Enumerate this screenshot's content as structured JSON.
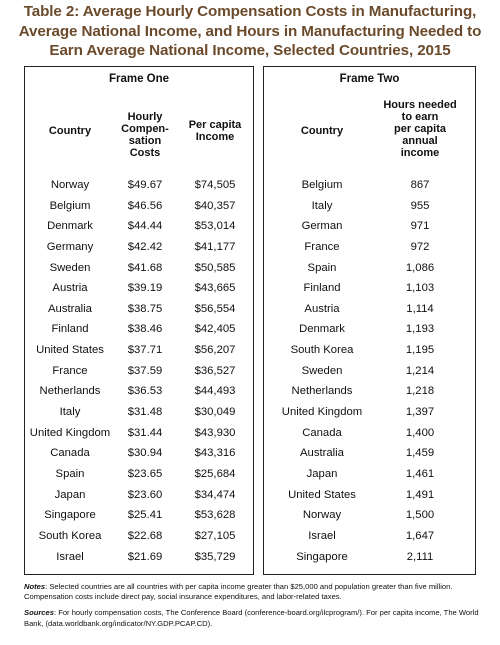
{
  "title_lines": [
    "Table 2: Average Hourly Compensation Costs in Manufacturing,",
    "Average National Income, and Hours in Manufacturing Needed to",
    "Earn Average National Income, Selected Countries, 2015"
  ],
  "frame_one": {
    "title": "Frame One",
    "headers": {
      "country": "Country",
      "hourly": [
        "Hourly",
        "Compen-",
        "sation",
        "Costs"
      ],
      "income": [
        "Per capita",
        "Income"
      ]
    },
    "rows": [
      {
        "country": "Norway",
        "hourly": "$49.67",
        "income": "$74,505"
      },
      {
        "country": "Belgium",
        "hourly": "$46.56",
        "income": "$40,357"
      },
      {
        "country": "Denmark",
        "hourly": "$44.44",
        "income": "$53,014"
      },
      {
        "country": "Germany",
        "hourly": "$42.42",
        "income": "$41,177"
      },
      {
        "country": "Sweden",
        "hourly": "$41.68",
        "income": "$50,585"
      },
      {
        "country": "Austria",
        "hourly": "$39.19",
        "income": "$43,665"
      },
      {
        "country": "Australia",
        "hourly": "$38.75",
        "income": "$56,554"
      },
      {
        "country": "Finland",
        "hourly": "$38.46",
        "income": "$42,405"
      },
      {
        "country": "United States",
        "hourly": "$37.71",
        "income": "$56,207"
      },
      {
        "country": "France",
        "hourly": "$37.59",
        "income": "$36,527"
      },
      {
        "country": "Netherlands",
        "hourly": "$36.53",
        "income": "$44,493"
      },
      {
        "country": "Italy",
        "hourly": "$31.48",
        "income": "$30,049"
      },
      {
        "country": "United Kingdom",
        "hourly": "$31.44",
        "income": "$43,930"
      },
      {
        "country": "Canada",
        "hourly": "$30.94",
        "income": "$43,316"
      },
      {
        "country": "Spain",
        "hourly": "$23.65",
        "income": "$25,684"
      },
      {
        "country": "Japan",
        "hourly": "$23.60",
        "income": "$34,474"
      },
      {
        "country": "Singapore",
        "hourly": "$25.41",
        "income": "$53,628"
      },
      {
        "country": "South Korea",
        "hourly": "$22.68",
        "income": "$27,105"
      },
      {
        "country": "Israel",
        "hourly": "$21.69",
        "income": "$35,729"
      }
    ]
  },
  "frame_two": {
    "title": "Frame Two",
    "headers": {
      "country": "Country",
      "hours": [
        "Hours needed",
        "to earn",
        "per capita",
        "annual",
        "income"
      ]
    },
    "rows": [
      {
        "country": "Belgium",
        "hours": "867"
      },
      {
        "country": "Italy",
        "hours": "955"
      },
      {
        "country": "German",
        "hours": "971"
      },
      {
        "country": "France",
        "hours": "972"
      },
      {
        "country": "Spain",
        "hours": "1,086"
      },
      {
        "country": "Finland",
        "hours": "1,103"
      },
      {
        "country": "Austria",
        "hours": "1,114"
      },
      {
        "country": "Denmark",
        "hours": "1,193"
      },
      {
        "country": "South Korea",
        "hours": "1,195"
      },
      {
        "country": "Sweden",
        "hours": "1,214"
      },
      {
        "country": "Netherlands",
        "hours": "1,218"
      },
      {
        "country": "United Kingdom",
        "hours": "1,397"
      },
      {
        "country": "Canada",
        "hours": "1,400"
      },
      {
        "country": "Australia",
        "hours": "1,459"
      },
      {
        "country": "Japan",
        "hours": "1,461"
      },
      {
        "country": "United States",
        "hours": "1,491"
      },
      {
        "country": "Norway",
        "hours": "1,500"
      },
      {
        "country": "Israel",
        "hours": "1,647"
      },
      {
        "country": "Singapore",
        "hours": "2,111"
      }
    ]
  },
  "notes": {
    "label": "Notes",
    "text": ": Selected countries are all countries with per capita income greater than $25,000 and population greater than five million. Compensation costs include direct pay, social insurance expenditures, and labor-related taxes."
  },
  "sources": {
    "label": "Sources",
    "text": ": For hourly compensation costs, The Conference Board (conference-board.org/ilcprogram/). For per capita income, The World Bank, (data.worldbank.org/indicator/NY.GDP.PCAP.CD)."
  }
}
